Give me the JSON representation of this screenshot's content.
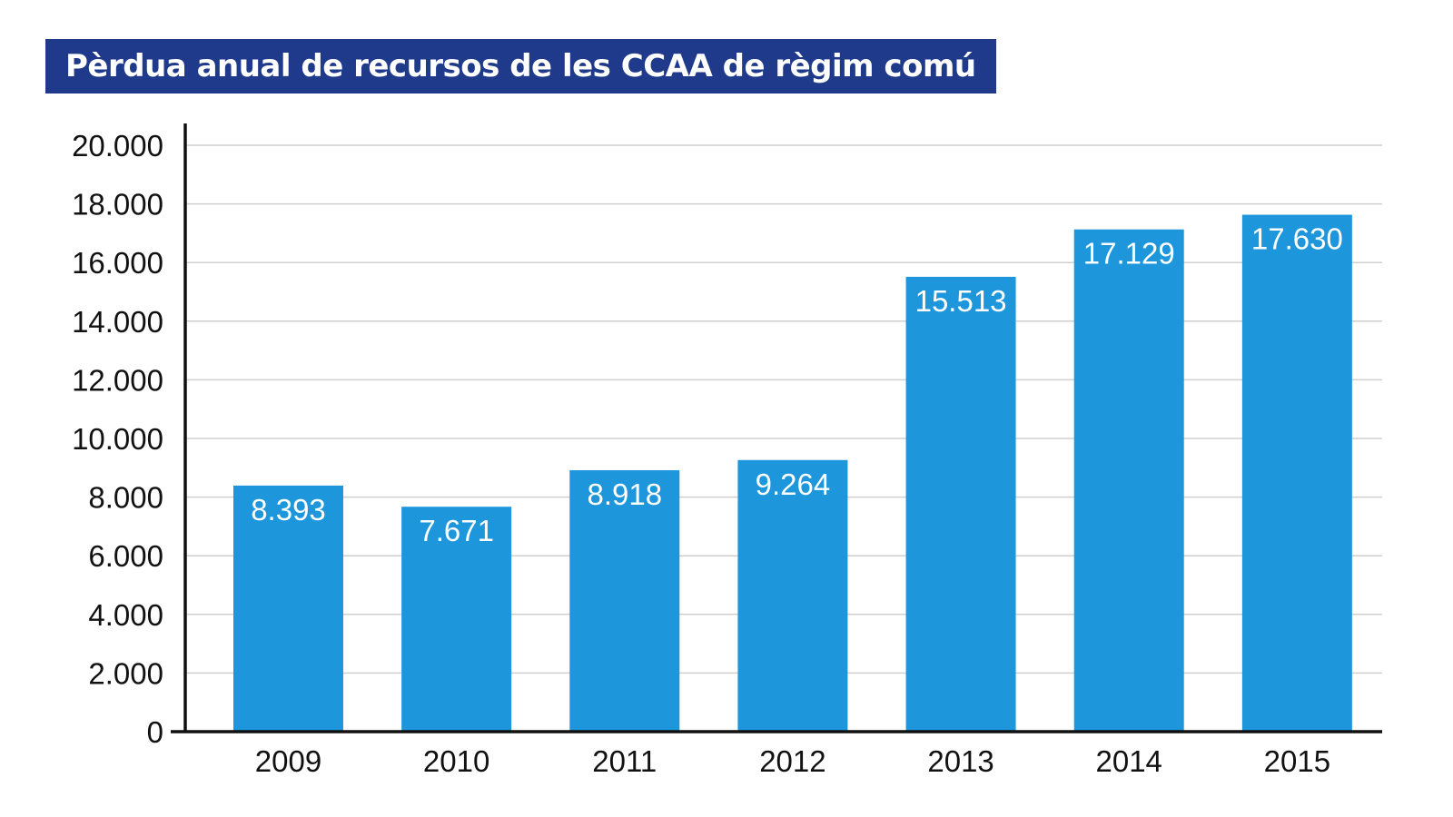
{
  "chart_data": {
    "type": "bar",
    "title": "Pèrdua anual de recursos de les CCAA de règim comú",
    "categories": [
      "2009",
      "2010",
      "2011",
      "2012",
      "2013",
      "2014",
      "2015"
    ],
    "values": [
      8393,
      7671,
      8918,
      9264,
      15513,
      17129,
      17630
    ],
    "value_labels": [
      "8.393",
      "7.671",
      "8.918",
      "9.264",
      "15.513",
      "17.129",
      "17.630"
    ],
    "ylim": [
      0,
      20000
    ],
    "yticks": [
      0,
      2000,
      4000,
      6000,
      8000,
      10000,
      12000,
      14000,
      16000,
      18000,
      20000
    ],
    "ytick_labels": [
      "0",
      "2.000",
      "4.000",
      "6.000",
      "8.000",
      "10.000",
      "12.000",
      "14.000",
      "16.000",
      "18.000",
      "20.000"
    ],
    "grid": true,
    "xlabel": "",
    "ylabel": ""
  },
  "colors": {
    "title_background": "#1f3a8a",
    "bar": "#1e96dc",
    "grid": "#cfcfcf",
    "axis": "#111111"
  }
}
